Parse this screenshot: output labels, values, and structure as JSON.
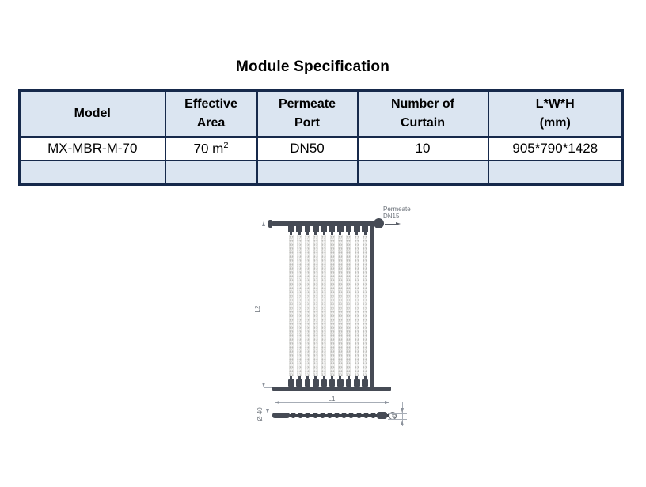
{
  "title": "Module Specification",
  "table": {
    "headers": [
      {
        "line1": "Model",
        "line2": ""
      },
      {
        "line1": "Effective",
        "line2": "Area"
      },
      {
        "line1": "Permeate",
        "line2": "Port"
      },
      {
        "line1": "Number of",
        "line2": "Curtain"
      },
      {
        "line1": "L*W*H",
        "line2": "(mm)"
      }
    ],
    "rows": [
      {
        "model": "MX-MBR-M-70",
        "area_value": "70 m",
        "area_sup": "2",
        "port": "DN50",
        "curtains": "10",
        "lwh": "905*790*1428"
      }
    ],
    "colors": {
      "header_bg": "#dbe5f1",
      "data_row_bg": "#ffffff",
      "empty_row_bg": "#dbe5f1",
      "border": "#16294b"
    }
  },
  "diagram": {
    "permeate_line1": "Permeate",
    "permeate_line2": "DN15",
    "height_dim_label": "L2",
    "width_dim_label": "L1",
    "diameter_dim_label": "Ø 40",
    "port_dim_label": "Ø",
    "curtain_count": 10,
    "bottom_node_count": 12,
    "colors": {
      "solid": "#464b55",
      "dimension_line": "#a7adb6",
      "label_text": "#6a7078"
    }
  }
}
